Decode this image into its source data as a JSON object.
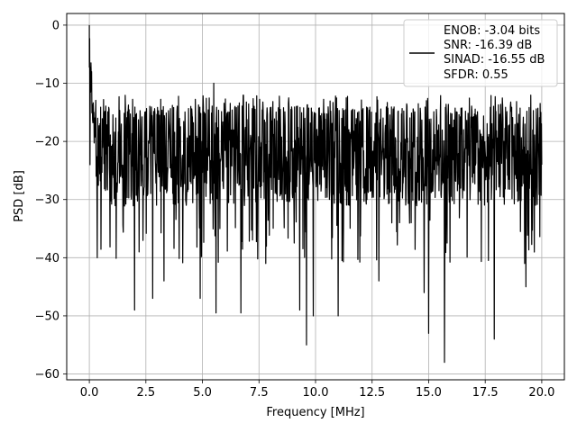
{
  "chart_data": {
    "type": "line",
    "xlabel": "Frequency [MHz]",
    "ylabel": "PSD [dB]",
    "xlim": [
      -1.0,
      21.0
    ],
    "ylim": [
      -61.0,
      2.0
    ],
    "x_ticks": [
      0.0,
      2.5,
      5.0,
      7.5,
      10.0,
      12.5,
      15.0,
      17.5,
      20.0
    ],
    "x_tick_labels": [
      "0.0",
      "2.5",
      "5.0",
      "7.5",
      "10.0",
      "12.5",
      "15.0",
      "17.5",
      "20.0"
    ],
    "y_ticks": [
      0,
      -10,
      -20,
      -30,
      -40,
      -50,
      -60
    ],
    "y_tick_labels": [
      "0",
      "−10",
      "−20",
      "−30",
      "−40",
      "−50",
      "−60"
    ],
    "grid": true,
    "legend_position": "top-right",
    "legend_entries": [
      "ENOB: -3.04 bits",
      "SNR: -16.39 dB",
      "SINAD: -16.55 dB",
      "SFDR: 0.55"
    ],
    "series": [
      {
        "color": "#000000",
        "peak": {
          "x": 0.0,
          "y": 0.0
        },
        "noise_floor_band": [
          -30,
          -15
        ],
        "notable_points": [
          {
            "x": 0.03,
            "y": -24
          },
          {
            "x": 0.1,
            "y": -8
          },
          {
            "x": 0.2,
            "y": -15
          },
          {
            "x": 0.3,
            "y": -26
          },
          {
            "x": 0.35,
            "y": -40
          },
          {
            "x": 2.0,
            "y": -49
          },
          {
            "x": 2.2,
            "y": -39
          },
          {
            "x": 2.8,
            "y": -47
          },
          {
            "x": 3.3,
            "y": -44
          },
          {
            "x": 4.9,
            "y": -47
          },
          {
            "x": 5.5,
            "y": -10
          },
          {
            "x": 5.6,
            "y": -49.5
          },
          {
            "x": 6.7,
            "y": -49.5
          },
          {
            "x": 7.8,
            "y": -41
          },
          {
            "x": 9.3,
            "y": -49
          },
          {
            "x": 9.6,
            "y": -55
          },
          {
            "x": 9.9,
            "y": -50
          },
          {
            "x": 11.0,
            "y": -50
          },
          {
            "x": 12.8,
            "y": -44
          },
          {
            "x": 14.8,
            "y": -46
          },
          {
            "x": 14.9,
            "y": -13
          },
          {
            "x": 15.0,
            "y": -53
          },
          {
            "x": 15.7,
            "y": -58
          },
          {
            "x": 17.9,
            "y": -54
          },
          {
            "x": 19.3,
            "y": -45
          },
          {
            "x": 20.0,
            "y": -24
          }
        ]
      }
    ]
  }
}
